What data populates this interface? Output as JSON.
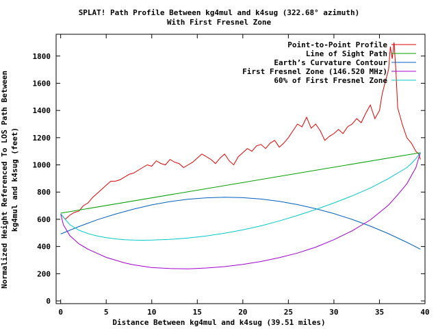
{
  "chart_data": {
    "type": "line",
    "title": "SPLAT! Path Profile Between kg4mul and k4sug (322.68° azimuth)",
    "subtitle": "With First Fresnel Zone",
    "xlabel": "Distance Between kg4mul and k4sug (39.51 miles)",
    "ylabel_line1": "Normalized Height Referenced To LOS Path Between",
    "ylabel_line2": "kg4mul and k4sug (feet)",
    "xlim": [
      -0.5,
      40
    ],
    "ylim": [
      -20,
      1960
    ],
    "x_ticks": [
      0,
      5,
      10,
      15,
      20,
      25,
      30,
      35,
      40
    ],
    "y_ticks": [
      0,
      200,
      400,
      600,
      800,
      1000,
      1200,
      1400,
      1600,
      1800
    ],
    "grid": false,
    "legend_position": "top-right",
    "series": [
      {
        "name": "Point-to-Point Profile",
        "color": "#e00000",
        "x": [
          0,
          0.5,
          1,
          1.5,
          2,
          2.5,
          3,
          3.5,
          4,
          4.5,
          5,
          5.5,
          6,
          6.5,
          7,
          7.5,
          8,
          8.5,
          9,
          9.5,
          10,
          10.5,
          11,
          11.5,
          12,
          12.5,
          13,
          13.5,
          14,
          14.5,
          15,
          15.5,
          16,
          16.5,
          17,
          17.5,
          18,
          18.5,
          19,
          19.5,
          20,
          20.5,
          21,
          21.5,
          22,
          22.5,
          23,
          23.5,
          24,
          24.5,
          25,
          25.5,
          26,
          26.5,
          27,
          27.5,
          28,
          28.5,
          29,
          29.5,
          30,
          30.5,
          31,
          31.5,
          32,
          32.5,
          33,
          33.5,
          34,
          34.5,
          35,
          35.3,
          35.6,
          36,
          36.2,
          36.4,
          36.6,
          36.8,
          37,
          37.5,
          38,
          38.5,
          39,
          39.3,
          39.5
        ],
        "y": [
          640,
          600,
          630,
          650,
          660,
          700,
          720,
          760,
          790,
          820,
          850,
          880,
          880,
          890,
          910,
          930,
          940,
          960,
          980,
          1000,
          990,
          1030,
          1010,
          1000,
          1040,
          1020,
          1010,
          980,
          1000,
          1020,
          1050,
          1080,
          1060,
          1040,
          1010,
          1050,
          1080,
          1030,
          1000,
          1060,
          1090,
          1120,
          1100,
          1140,
          1150,
          1120,
          1160,
          1180,
          1130,
          1160,
          1200,
          1250,
          1300,
          1280,
          1350,
          1270,
          1300,
          1250,
          1180,
          1210,
          1230,
          1260,
          1230,
          1280,
          1300,
          1340,
          1310,
          1380,
          1440,
          1340,
          1400,
          1520,
          1600,
          1700,
          1870,
          1780,
          1900,
          1700,
          1420,
          1300,
          1200,
          1160,
          1100,
          1080,
          1040
        ]
      },
      {
        "name": "Line of Sight Path",
        "color": "#00a000",
        "x": [
          0,
          39.5
        ],
        "y": [
          645,
          1090
        ]
      },
      {
        "name": "Earth’s Curvature Contour",
        "color": "#0060c0",
        "x": [
          0,
          2,
          4,
          6,
          8,
          10,
          12,
          14,
          16,
          18,
          20,
          22,
          24,
          26,
          28,
          30,
          32,
          34,
          36,
          38,
          39.5
        ],
        "y": [
          492,
          547,
          596,
          638,
          675,
          706,
          730,
          748,
          758,
          762,
          759,
          749,
          732,
          708,
          678,
          642,
          599,
          550,
          494,
          431,
          380
        ]
      },
      {
        "name": "First Fresnel Zone (146.520 MHz)",
        "color": "#a000d0",
        "x": [
          0,
          0.3,
          1,
          2,
          3,
          4,
          5,
          6,
          7,
          8,
          10,
          12,
          14,
          16,
          18,
          20,
          22,
          24,
          26,
          28,
          30,
          32,
          34,
          35,
          36,
          37,
          38,
          38.5,
          39,
          39.3,
          39.5
        ],
        "y": [
          640,
          560,
          480,
          420,
          380,
          350,
          320,
          300,
          280,
          265,
          245,
          238,
          236,
          242,
          252,
          268,
          290,
          318,
          352,
          395,
          450,
          515,
          595,
          650,
          705,
          780,
          860,
          920,
          980,
          1050,
          1090
        ]
      },
      {
        "name": "60% of First Fresnel Zone",
        "color": "#00c8c8",
        "x": [
          0,
          1,
          2,
          3,
          4,
          5,
          6,
          7,
          8,
          9,
          10,
          12,
          14,
          16,
          18,
          20,
          22,
          24,
          26,
          28,
          30,
          32,
          34,
          36,
          37,
          38,
          38.5,
          39,
          39.5
        ],
        "y": [
          640,
          560,
          520,
          495,
          478,
          465,
          456,
          450,
          447,
          446,
          447,
          452,
          462,
          478,
          498,
          522,
          552,
          588,
          628,
          672,
          720,
          772,
          830,
          900,
          940,
          980,
          1010,
          1045,
          1090
        ]
      }
    ]
  }
}
